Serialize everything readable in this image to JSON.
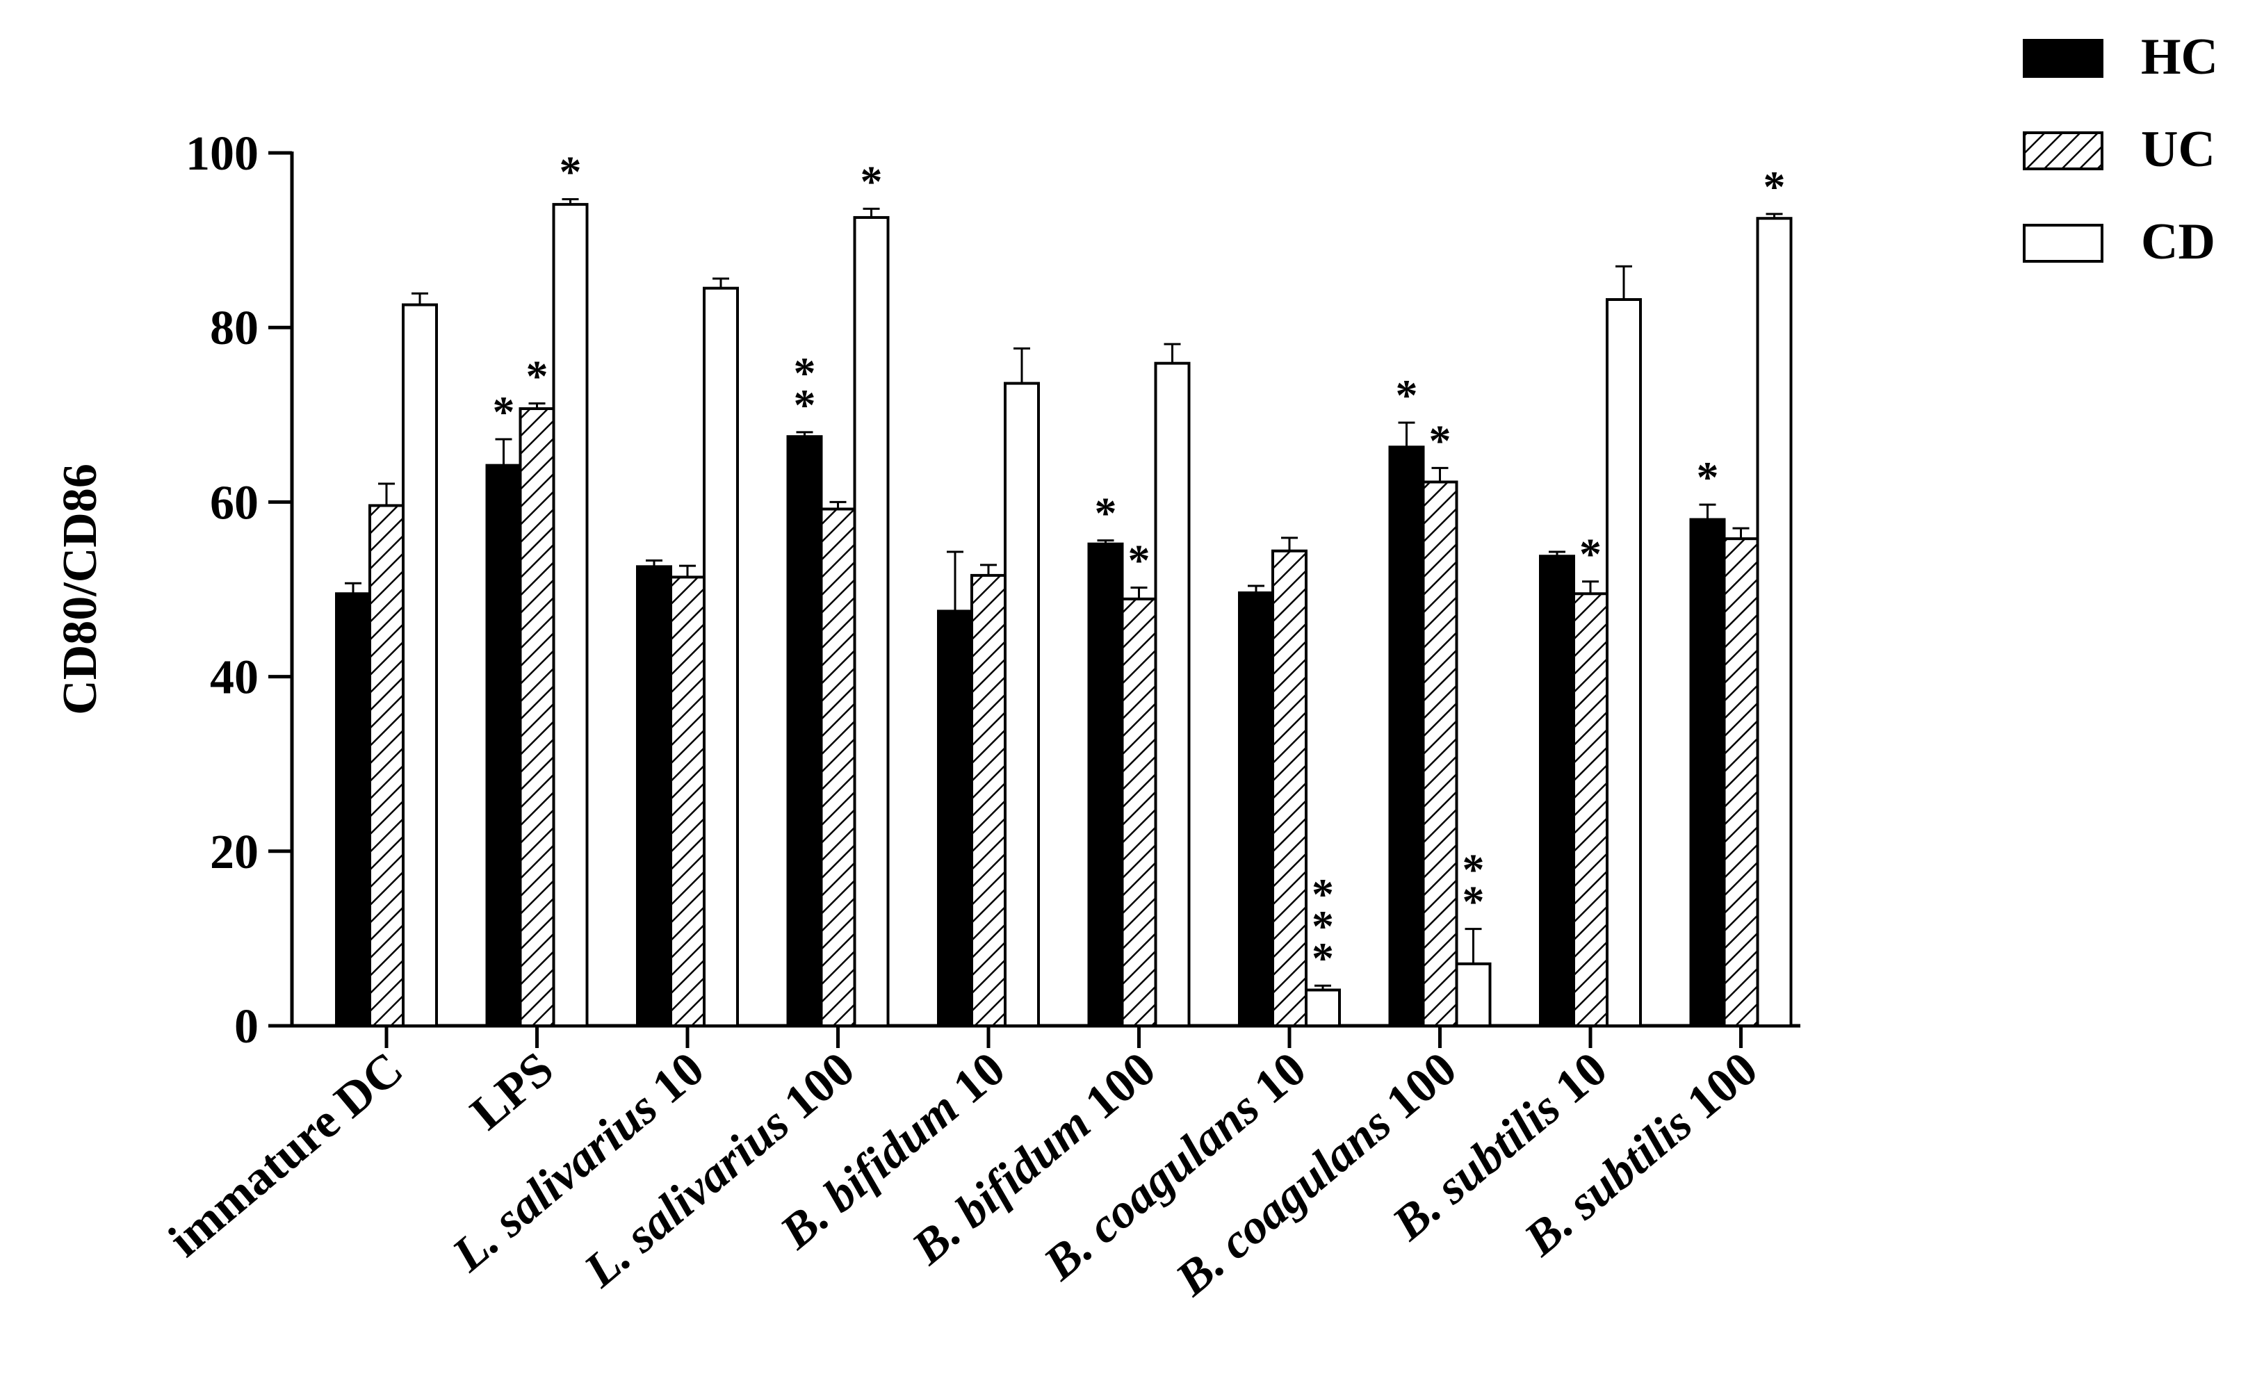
{
  "chart_data": {
    "type": "bar",
    "title": "",
    "xlabel": "",
    "ylabel": "CD80/CD86",
    "ylim": [
      0,
      100
    ],
    "yticks": [
      0,
      20,
      40,
      60,
      80,
      100
    ],
    "grid": false,
    "legend_position": "top-right",
    "categories": [
      {
        "prefix": "",
        "species": "",
        "suffix": "immature DC"
      },
      {
        "prefix": "",
        "species": "",
        "suffix": "LPS"
      },
      {
        "prefix": "L. ",
        "species": "salivarius",
        "suffix": " 10"
      },
      {
        "prefix": "L. ",
        "species": "salivarius",
        "suffix": " 100"
      },
      {
        "prefix": "B. ",
        "species": "bifidum",
        "suffix": " 10"
      },
      {
        "prefix": "B. ",
        "species": "bifidum",
        "suffix": " 100"
      },
      {
        "prefix": "B. ",
        "species": "coagulans",
        "suffix": " 10"
      },
      {
        "prefix": "B. ",
        "species": "coagulans",
        "suffix": " 100"
      },
      {
        "prefix": "B. ",
        "species": "subtilis",
        "suffix": " 10"
      },
      {
        "prefix": "B. ",
        "species": "subtilis",
        "suffix": " 100"
      }
    ],
    "series": [
      {
        "name": "HC",
        "fill": "solid",
        "color": "#000000",
        "values": [
          49.5,
          64.2,
          52.6,
          67.5,
          47.5,
          55.2,
          49.6,
          66.3,
          53.8,
          58.0
        ],
        "errors": [
          1.2,
          3.0,
          0.7,
          0.5,
          6.8,
          0.4,
          0.8,
          2.8,
          0.5,
          1.7
        ],
        "sig": [
          "",
          "*",
          "",
          "**",
          "",
          "*",
          "",
          "*",
          "",
          "*"
        ]
      },
      {
        "name": "UC",
        "fill": "hatched",
        "color": "#000000",
        "values": [
          59.6,
          70.7,
          51.4,
          59.2,
          51.6,
          48.9,
          54.4,
          62.3,
          49.5,
          55.8
        ],
        "errors": [
          2.5,
          0.6,
          1.3,
          0.8,
          1.2,
          1.3,
          1.5,
          1.6,
          1.4,
          1.2
        ],
        "sig": [
          "",
          "*",
          "",
          "",
          "",
          "*",
          "",
          "*",
          "*",
          ""
        ]
      },
      {
        "name": "CD",
        "fill": "open",
        "color": "#000000",
        "values": [
          82.6,
          94.1,
          84.5,
          92.6,
          73.6,
          75.9,
          4.1,
          7.1,
          83.2,
          92.5
        ],
        "errors": [
          1.3,
          0.6,
          1.1,
          1.0,
          4.0,
          2.2,
          0.5,
          4.0,
          3.8,
          0.5
        ],
        "sig": [
          "",
          "*",
          "",
          "*",
          "",
          "",
          "***",
          "**",
          "",
          "*"
        ]
      }
    ]
  }
}
